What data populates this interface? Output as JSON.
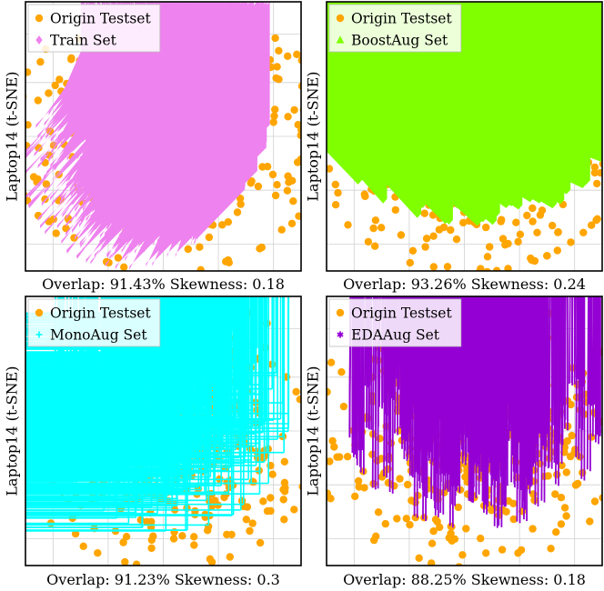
{
  "figure": {
    "colors": {
      "origin": "#FFA500",
      "train": "#EE82EE",
      "boost": "#80FF00",
      "mono": "#00FFFF",
      "eda": "#9400D3",
      "grid": "#d0d0d0",
      "frame": "#000000"
    }
  },
  "chart_data": [
    {
      "type": "scatter",
      "title": "",
      "ylabel": "Laptop14 (t-SNE)",
      "caption": "Overlap: 91.43% Skewness: 0.18",
      "legend_position": "top-left",
      "series": [
        {
          "name": "Origin Testset",
          "marker": "circle",
          "color": "#FFA500",
          "count": 520,
          "center": [
            0,
            0
          ],
          "spread": [
            1.1,
            1.0
          ],
          "seed": 11
        },
        {
          "name": "Train Set",
          "marker": "diamond",
          "color": "#EE82EE",
          "count": 700,
          "center": [
            0.1,
            0.2
          ],
          "spread": [
            0.65,
            0.75
          ],
          "seed": 12
        }
      ]
    },
    {
      "type": "scatter",
      "title": "",
      "ylabel": "",
      "caption": "Overlap: 93.26% Skewness: 0.24",
      "legend_position": "top-left",
      "series": [
        {
          "name": "Origin Testset",
          "marker": "circle",
          "color": "#FFA500",
          "count": 520,
          "center": [
            0,
            0
          ],
          "spread": [
            1.1,
            1.0
          ],
          "seed": 21
        },
        {
          "name": "BoostAug Set",
          "marker": "triangle",
          "color": "#80FF00",
          "count": 650,
          "center": [
            0.1,
            0.1
          ],
          "spread": [
            0.95,
            0.7
          ],
          "seed": 22
        }
      ]
    },
    {
      "type": "scatter",
      "title": "",
      "ylabel": "Laptop14 (t-SNE)",
      "caption": "Overlap: 91.23% Skewness: 0.3",
      "legend_position": "top-left",
      "series": [
        {
          "name": "Origin Testset",
          "marker": "circle",
          "color": "#FFA500",
          "count": 520,
          "center": [
            0,
            0
          ],
          "spread": [
            1.1,
            1.0
          ],
          "seed": 31
        },
        {
          "name": "MonoAug Set",
          "marker": "plus",
          "color": "#00FFFF",
          "count": 700,
          "center": [
            0.05,
            0.15
          ],
          "spread": [
            0.8,
            0.8
          ],
          "seed": 32
        }
      ]
    },
    {
      "type": "scatter",
      "title": "",
      "ylabel": "Laptop14 (t-SNE)",
      "caption": "Overlap: 88.25% Skewness: 0.18",
      "legend_position": "top-left",
      "series": [
        {
          "name": "Origin Testset",
          "marker": "circle",
          "color": "#FFA500",
          "count": 520,
          "center": [
            0,
            0
          ],
          "spread": [
            1.1,
            1.0
          ],
          "seed": 41
        },
        {
          "name": "EDAAug Set",
          "marker": "asterisk",
          "color": "#9400D3",
          "count": 480,
          "center": [
            0.1,
            -0.05
          ],
          "spread": [
            0.85,
            0.7
          ],
          "seed": 42
        }
      ]
    }
  ]
}
